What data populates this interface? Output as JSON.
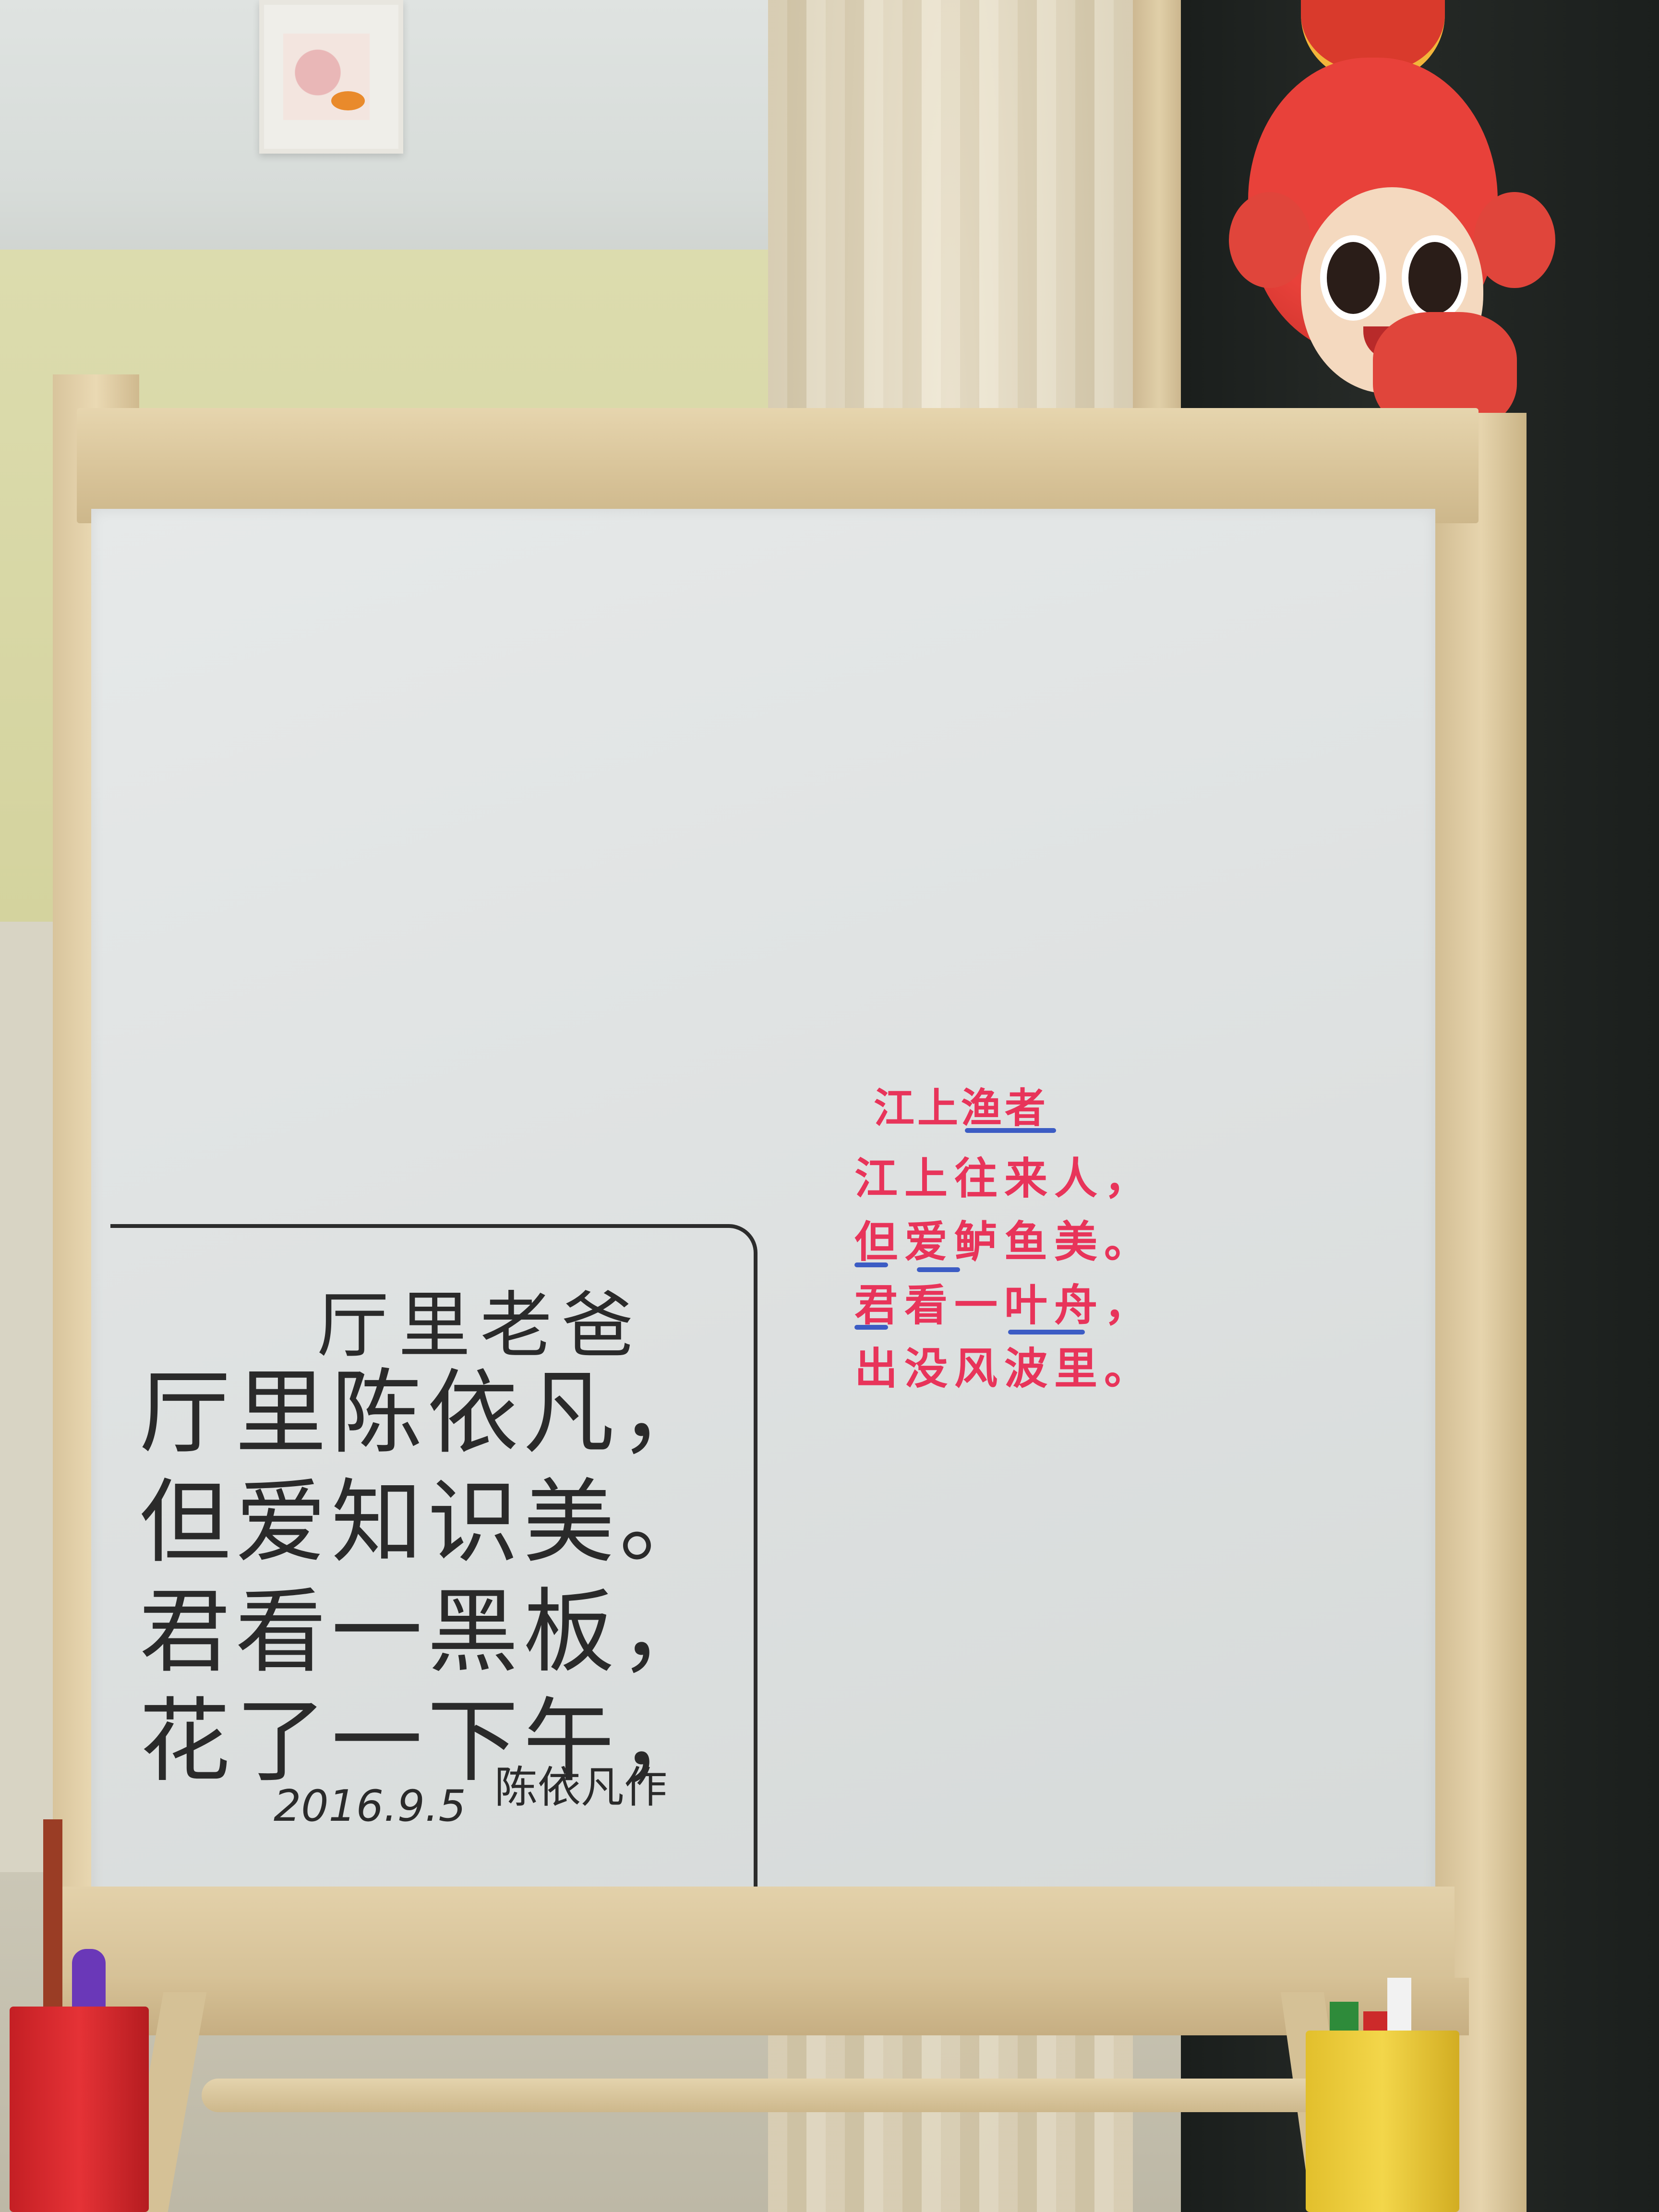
{
  "board": {
    "poem_title": "厅里老爸",
    "poem_lines": [
      "厅里陈依凡，",
      "但爱知识美。",
      "君看一黑板，",
      "花了一下午，"
    ],
    "poem_author": "陈依凡作",
    "poem_date": "2016.9.5",
    "red_title": "江上渔者",
    "red_lines": [
      "江上往来人，",
      "但爱鲈鱼美。",
      "君看一叶舟，",
      "出没风波里。"
    ]
  },
  "colors": {
    "marker_black": "#2a2a2a",
    "marker_red": "#e8345a",
    "marker_blue": "#3c5cc4",
    "wood": "#d7c297",
    "whiteboard": "#e2e5e5"
  }
}
